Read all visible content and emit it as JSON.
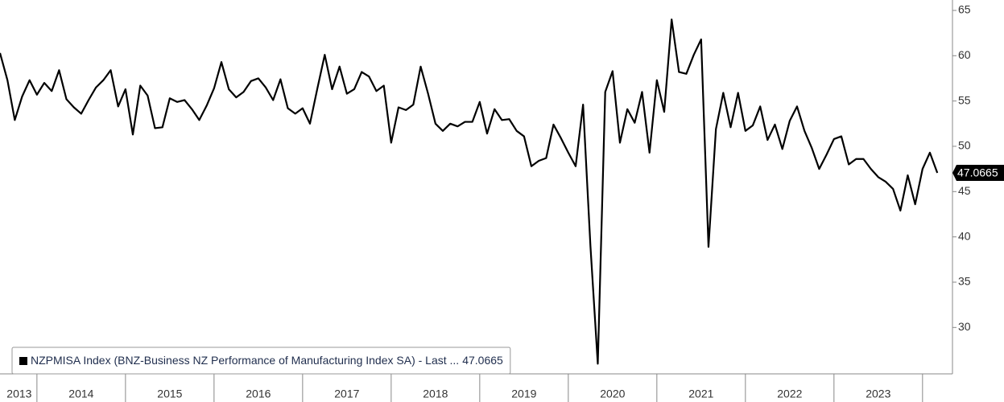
{
  "chart_data": {
    "type": "line",
    "x": [
      2013.583,
      2013.667,
      2013.75,
      2013.833,
      2013.917,
      2014,
      2014.083,
      2014.167,
      2014.25,
      2014.333,
      2014.417,
      2014.5,
      2014.583,
      2014.667,
      2014.75,
      2014.833,
      2014.917,
      2015,
      2015.083,
      2015.167,
      2015.25,
      2015.333,
      2015.417,
      2015.5,
      2015.583,
      2015.667,
      2015.75,
      2015.833,
      2015.917,
      2016,
      2016.083,
      2016.167,
      2016.25,
      2016.333,
      2016.417,
      2016.5,
      2016.583,
      2016.667,
      2016.75,
      2016.833,
      2016.917,
      2017,
      2017.083,
      2017.167,
      2017.25,
      2017.333,
      2017.417,
      2017.5,
      2017.583,
      2017.667,
      2017.75,
      2017.833,
      2017.917,
      2018,
      2018.083,
      2018.167,
      2018.25,
      2018.333,
      2018.417,
      2018.5,
      2018.583,
      2018.667,
      2018.75,
      2018.833,
      2018.917,
      2019,
      2019.083,
      2019.167,
      2019.25,
      2019.333,
      2019.417,
      2019.5,
      2019.583,
      2019.667,
      2019.75,
      2019.833,
      2019.917,
      2020,
      2020.083,
      2020.167,
      2020.25,
      2020.333,
      2020.417,
      2020.5,
      2020.583,
      2020.667,
      2020.75,
      2020.833,
      2020.917,
      2021,
      2021.083,
      2021.167,
      2021.25,
      2021.333,
      2021.417,
      2021.5,
      2021.583,
      2021.667,
      2021.75,
      2021.833,
      2021.917,
      2022,
      2022.083,
      2022.167,
      2022.25,
      2022.333,
      2022.417,
      2022.5,
      2022.583,
      2022.667,
      2022.75,
      2022.833,
      2022.917,
      2023,
      2023.083,
      2023.167,
      2023.25,
      2023.333,
      2023.417,
      2023.5,
      2023.583,
      2023.667,
      2023.75,
      2023.833,
      2023.917,
      2024,
      2024.083,
      2024.167
    ],
    "series": [
      {
        "name": "NZPMISA Index (BNZ-Business NZ Performance of Manufacturing Index SA) - Last ...",
        "color": "#000000",
        "values": [
          60.3,
          57.3,
          52.9,
          55.5,
          57.3,
          55.7,
          57.0,
          56.1,
          58.4,
          55.2,
          54.3,
          53.6,
          55.1,
          56.5,
          57.3,
          58.4,
          54.4,
          56.3,
          51.3,
          56.7,
          55.6,
          52.0,
          52.1,
          55.3,
          54.9,
          55.1,
          54.1,
          52.9,
          54.5,
          56.4,
          59.3,
          56.3,
          55.4,
          56.0,
          57.2,
          57.5,
          56.5,
          55.1,
          57.4,
          54.2,
          53.6,
          54.2,
          52.5,
          56.4,
          60.1,
          56.3,
          58.8,
          55.8,
          56.3,
          58.2,
          57.7,
          56.1,
          56.7,
          50.4,
          54.3,
          54.0,
          54.6,
          58.8,
          55.8,
          52.5,
          51.7,
          52.5,
          52.2,
          52.7,
          52.7,
          54.9,
          51.4,
          54.1,
          52.9,
          53.0,
          51.7,
          51.1,
          47.8,
          48.4,
          48.7,
          52.4,
          50.9,
          49.3,
          47.8,
          54.6,
          39.0,
          26.0,
          56.0,
          58.3,
          50.4,
          54.1,
          52.6,
          56.0,
          49.3,
          57.3,
          53.8,
          64.0,
          58.2,
          58.0,
          60.1,
          61.8,
          38.9,
          51.9,
          55.9,
          52.1,
          55.9,
          51.7,
          52.3,
          54.4,
          50.7,
          52.4,
          49.7,
          52.8,
          54.4,
          51.7,
          49.8,
          47.5,
          49.1,
          50.8,
          51.1,
          48.0,
          48.6,
          48.6,
          47.5,
          46.6,
          46.1,
          45.3,
          42.9,
          46.8,
          43.6,
          47.5,
          49.3,
          47.0665
        ]
      }
    ],
    "xlim": [
      2013.583,
      2024.338
    ],
    "xticks": [
      {
        "value": 2013.8,
        "label": "2013"
      },
      {
        "value": 2014.5,
        "label": "2014"
      },
      {
        "value": 2015.5,
        "label": "2015"
      },
      {
        "value": 2016.5,
        "label": "2016"
      },
      {
        "value": 2017.5,
        "label": "2017"
      },
      {
        "value": 2018.5,
        "label": "2018"
      },
      {
        "value": 2019.5,
        "label": "2019"
      },
      {
        "value": 2020.5,
        "label": "2020"
      },
      {
        "value": 2021.5,
        "label": "2021"
      },
      {
        "value": 2022.5,
        "label": "2022"
      },
      {
        "value": 2023.5,
        "label": "2023"
      }
    ],
    "ylim": [
      24.88,
      66.15
    ],
    "yticks": [
      30,
      35,
      40,
      45,
      50,
      55,
      60,
      65
    ],
    "legend": "bottom-left"
  }
}
